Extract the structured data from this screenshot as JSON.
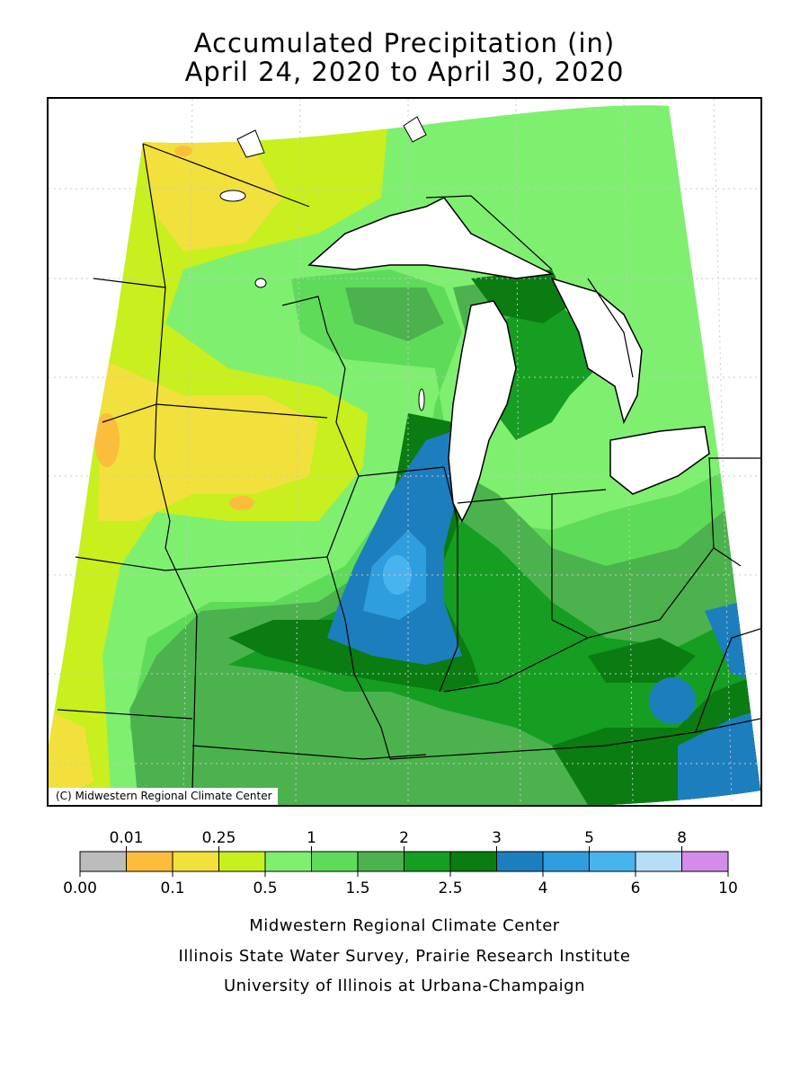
{
  "title": {
    "line1": "Accumulated Precipitation (in)",
    "line2": "April 24, 2020 to April 30, 2020"
  },
  "map": {
    "copyright": "(C) Midwestern Regional Climate Center"
  },
  "legend": {
    "bins": [
      {
        "color": "#bcbcbc"
      },
      {
        "color": "#fcbd3c"
      },
      {
        "color": "#f2e03c"
      },
      {
        "color": "#c8ef1e"
      },
      {
        "color": "#7fef70"
      },
      {
        "color": "#5fdb5a"
      },
      {
        "color": "#4cb24e"
      },
      {
        "color": "#159e22"
      },
      {
        "color": "#0a7c12"
      },
      {
        "color": "#1d7ebd"
      },
      {
        "color": "#2e9ede"
      },
      {
        "color": "#48b4ee"
      },
      {
        "color": "#b7def7"
      },
      {
        "color": "#d38de9"
      }
    ],
    "top_labels": [
      "0.01",
      "0.25",
      "1",
      "2",
      "3",
      "5",
      "8"
    ],
    "bottom_labels": [
      "0.00",
      "0.1",
      "0.5",
      "1.5",
      "2.5",
      "4",
      "6",
      "10"
    ]
  },
  "footer": {
    "line1": "Midwestern Regional Climate Center",
    "line2": "Illinois State Water Survey, Prairie Research Institute",
    "line3": "University of Illinois at Urbana-Champaign"
  }
}
